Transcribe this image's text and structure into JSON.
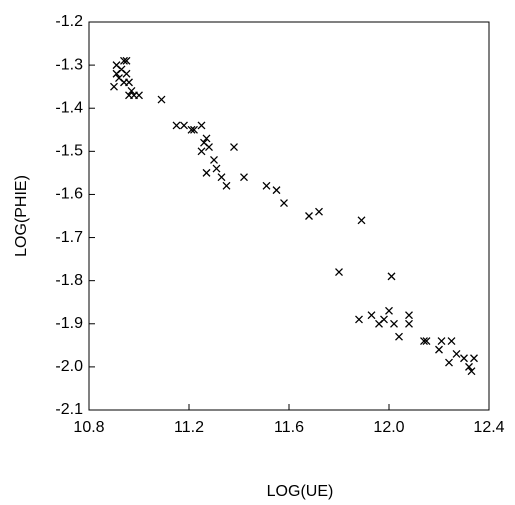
{
  "chart_data": {
    "type": "scatter",
    "marker": "x",
    "color": "#000000",
    "x_label": "LOG(UE)",
    "y_label": "LOG(PHIE)",
    "x": [
      10.9,
      10.91,
      10.91,
      10.92,
      10.93,
      10.94,
      10.95,
      10.95,
      10.94,
      10.96,
      10.96,
      10.97,
      10.98,
      11.0,
      11.09,
      11.15,
      11.18,
      11.21,
      11.22,
      11.25,
      11.25,
      11.26,
      11.27,
      11.28,
      11.3,
      11.27,
      11.31,
      11.33,
      11.35,
      11.38,
      11.42,
      11.51,
      11.55,
      11.58,
      11.68,
      11.72,
      11.8,
      11.89,
      11.88,
      11.93,
      11.96,
      11.98,
      12.0,
      12.01,
      12.02,
      12.04,
      12.08,
      12.08,
      12.14,
      12.15,
      12.2,
      12.21,
      12.24,
      12.25,
      12.27,
      12.3,
      12.32,
      12.33,
      12.34
    ],
    "y": [
      -1.35,
      -1.32,
      -1.3,
      -1.33,
      -1.31,
      -1.29,
      -1.29,
      -1.32,
      -1.34,
      -1.34,
      -1.37,
      -1.36,
      -1.37,
      -1.37,
      -1.38,
      -1.44,
      -1.44,
      -1.45,
      -1.45,
      -1.44,
      -1.5,
      -1.48,
      -1.47,
      -1.49,
      -1.52,
      -1.55,
      -1.54,
      -1.56,
      -1.58,
      -1.49,
      -1.56,
      -1.58,
      -1.59,
      -1.62,
      -1.65,
      -1.64,
      -1.78,
      -1.66,
      -1.89,
      -1.88,
      -1.9,
      -1.89,
      -1.87,
      -1.79,
      -1.9,
      -1.93,
      -1.88,
      -1.9,
      -1.94,
      -1.94,
      -1.96,
      -1.94,
      -1.99,
      -1.94,
      -1.97,
      -1.98,
      -2.0,
      -2.01,
      -1.98
    ],
    "xlim": [
      10.8,
      12.4
    ],
    "xticks": [
      10.8,
      11.2,
      11.6,
      {
        "value": 12,
        "label": "12.0"
      },
      12.4
    ],
    "ylim": [
      -2.1,
      -1.2
    ],
    "yticks": [
      -1.2,
      -1.3,
      -1.4,
      -1.5,
      -1.6,
      -1.7,
      -1.8,
      -1.9,
      {
        "value": -2,
        "label": "-2.0"
      },
      -2.1
    ]
  }
}
